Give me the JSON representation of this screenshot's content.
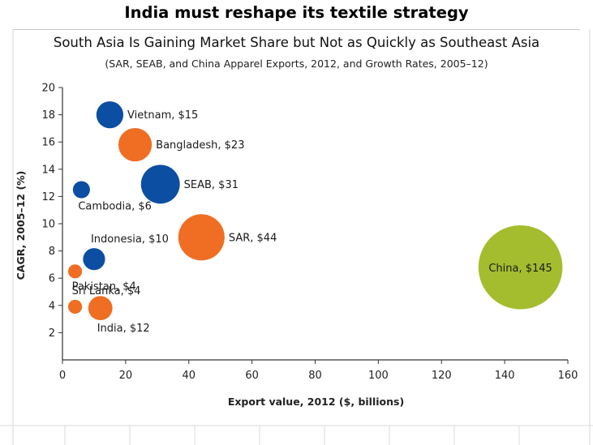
{
  "headline": "India must reshape its textile strategy",
  "chart_data": {
    "type": "scatter",
    "title": "South Asia Is Gaining Market Share but Not as Quickly as Southeast Asia",
    "subtitle": "(SAR, SEAB, and China Apparel Exports, 2012, and Growth Rates, 2005–12)",
    "xlabel": "Export value, 2012 ($, billions)",
    "ylabel": "CAGR, 2005–12 (%)",
    "xlim": [
      0,
      160
    ],
    "ylim": [
      0,
      20
    ],
    "x_ticks": [
      0,
      20,
      40,
      60,
      80,
      100,
      120,
      140,
      160
    ],
    "y_ticks": [
      2,
      4,
      6,
      8,
      10,
      12,
      14,
      16,
      18,
      20
    ],
    "grid": false,
    "colors": {
      "blue": "#0b4ea2",
      "orange": "#ef6e23",
      "green": "#a3bd2e"
    },
    "points": [
      {
        "label": "Vietnam, $15",
        "x": 15,
        "y": 18.0,
        "size": 15,
        "color": "blue",
        "label_pos": "right"
      },
      {
        "label": "Bangladesh, $23",
        "x": 23,
        "y": 15.8,
        "size": 23,
        "color": "orange",
        "label_pos": "right"
      },
      {
        "label": "SEAB, $31",
        "x": 31,
        "y": 12.9,
        "size": 31,
        "color": "blue",
        "label_pos": "right"
      },
      {
        "label": "Cambodia, $6",
        "x": 6,
        "y": 12.5,
        "size": 6,
        "color": "blue",
        "label_pos": "below"
      },
      {
        "label": "SAR, $44",
        "x": 44,
        "y": 9.0,
        "size": 44,
        "color": "orange",
        "label_pos": "right"
      },
      {
        "label": "Indonesia, $10",
        "x": 10,
        "y": 7.4,
        "size": 10,
        "color": "blue",
        "label_pos": "above"
      },
      {
        "label": "Pakistan, $4",
        "x": 4,
        "y": 6.5,
        "size": 4,
        "color": "orange",
        "label_pos": "below"
      },
      {
        "label": "Sri Lanka, $4",
        "x": 4,
        "y": 3.9,
        "size": 4,
        "color": "orange",
        "label_pos": "above"
      },
      {
        "label": "India, $12",
        "x": 12,
        "y": 3.8,
        "size": 12,
        "color": "orange",
        "label_pos": "below"
      },
      {
        "label": "China, $145",
        "x": 145,
        "y": 6.8,
        "size": 145,
        "color": "green",
        "label_pos": "center"
      }
    ]
  }
}
